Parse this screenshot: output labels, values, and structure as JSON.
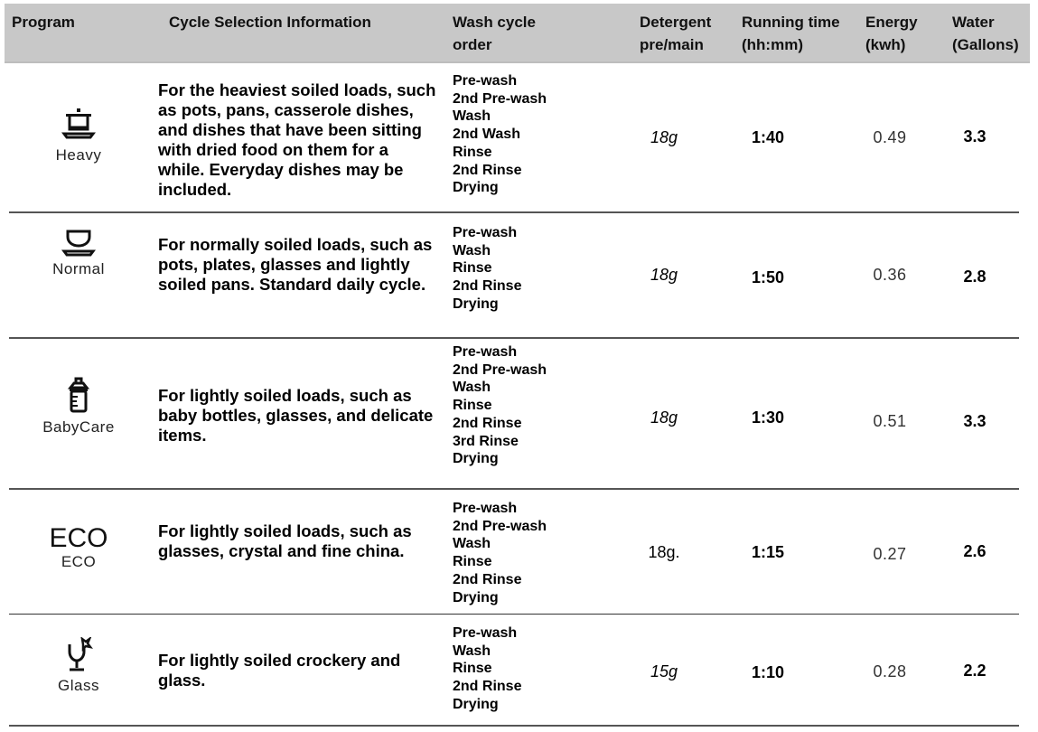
{
  "header": {
    "program": "Program",
    "info": "Cycle Selection Information",
    "wash": "Wash cycle\norder",
    "detergent": "Detergent\npre/main",
    "time": "Running time\n(hh:mm)",
    "energy": "Energy\n(kwh)",
    "water": "Water\n(Gallons)"
  },
  "rows": [
    {
      "icon": "pot-icon",
      "name": "Heavy",
      "info": "For the heaviest soiled loads, such as pots, pans, casserole dishes, and dishes that have been sitting with dried food on them for a while. Everyday dishes may be included.",
      "steps": [
        "Pre-wash",
        "2nd Pre-wash",
        "Wash",
        "2nd Wash",
        "Rinse",
        "2nd Rinse",
        "Drying"
      ],
      "detergent": "18g",
      "time": "1:40",
      "energy": "0.49",
      "water": "3.3"
    },
    {
      "icon": "bowl-icon",
      "name": "Normal",
      "info": "For normally soiled loads, such as pots, plates, glasses and lightly soiled pans. Standard daily cycle.",
      "steps": [
        "Pre-wash",
        "Wash",
        "Rinse",
        "2nd Rinse",
        "Drying"
      ],
      "detergent": "18g",
      "time": "1:50",
      "energy": "0.36",
      "water": "2.8"
    },
    {
      "icon": "baby-bottle-icon",
      "name": "BabyCare",
      "info": "For lightly soiled loads, such as baby bottles, glasses, and delicate items.",
      "steps": [
        "Pre-wash",
        "2nd Pre-wash",
        "Wash",
        "Rinse",
        "2nd Rinse",
        "3rd Rinse",
        "Drying"
      ],
      "detergent": "18g",
      "time": "1:30",
      "energy": "0.51",
      "water": "3.3"
    },
    {
      "icon": "eco-icon",
      "icon_text": "ECO",
      "name": "ECO",
      "info": "For lightly soiled loads, such as glasses, crystal and fine china.",
      "steps": [
        "Pre-wash",
        "2nd Pre-wash",
        "Wash",
        "Rinse",
        "2nd Rinse",
        "Drying"
      ],
      "detergent": "18g.",
      "time": "1:15",
      "energy": "0.27",
      "water": "2.6"
    },
    {
      "icon": "glass-icon",
      "name": "Glass",
      "info": "For lightly soiled crockery and glass.",
      "steps": [
        "Pre-wash",
        "Wash",
        "Rinse",
        "2nd Rinse",
        "Drying"
      ],
      "detergent": "15g",
      "time": "1:10",
      "energy": "0.28",
      "water": "2.2"
    }
  ]
}
